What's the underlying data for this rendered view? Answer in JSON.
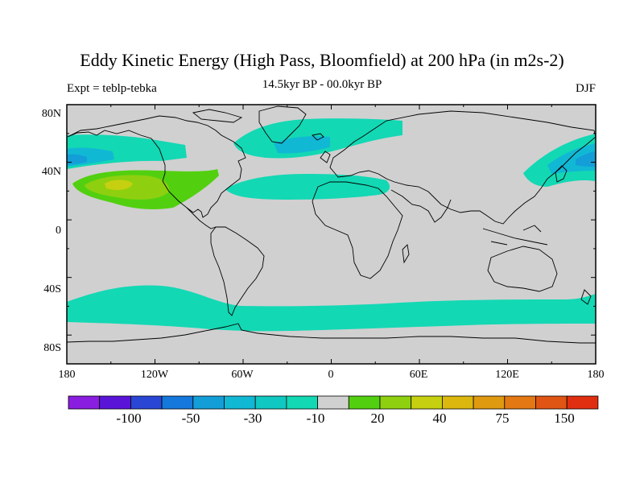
{
  "title": "Eddy Kinetic Energy (High Pass, Bloomfield) at 200 hPa (in m2s-2)",
  "subtitle_left": "Expt = teblp-tebka",
  "subtitle_center": "14.5kyr BP - 00.0kyr BP",
  "subtitle_right": "DJF",
  "lat_labels": [
    "80N",
    "40N",
    "0",
    "40S",
    "80S"
  ],
  "lon_labels": [
    "180",
    "120W",
    "60W",
    "0",
    "60E",
    "120E",
    "180"
  ],
  "colorbar": {
    "labels": [
      "-100",
      "-50",
      "-30",
      "-10",
      "20",
      "40",
      "75",
      "150"
    ],
    "colors": [
      "#8a1ee0",
      "#5a14d8",
      "#2a46d4",
      "#1478dc",
      "#139ed8",
      "#11b8d4",
      "#10c8c2",
      "#13d8b4",
      "#d0d0d0",
      "#52d010",
      "#8ed010",
      "#c6d010",
      "#dcb80e",
      "#e09a10",
      "#e47812",
      "#e05414",
      "#e02e10"
    ]
  },
  "colors": {
    "land_ocean_neutral": "#d0d0d0",
    "teal": "#13d8b4",
    "cyan": "#11b8d4",
    "light_blue": "#139ed8",
    "green": "#52d010",
    "yellow_green": "#8ed010",
    "olive": "#c6d010",
    "coast": "#000000"
  }
}
